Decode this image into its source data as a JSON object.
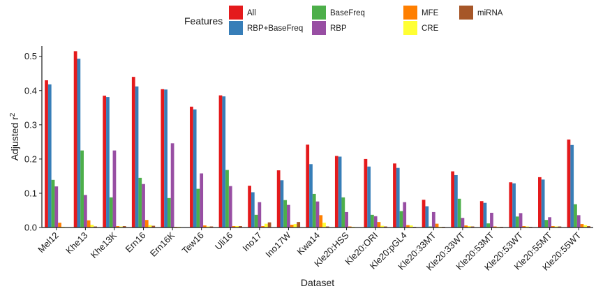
{
  "chart_data": {
    "type": "bar",
    "xlabel": "Dataset",
    "ylabel": "Adjusted r",
    "ylabel_superscript": "2",
    "ylim": [
      0,
      0.53
    ],
    "yticks": [
      "0.0",
      "0.1",
      "0.2",
      "0.3",
      "0.4",
      "0.5"
    ],
    "legend_title": "Features",
    "legend_placement": "top",
    "grid": false,
    "categories": [
      "Mel12",
      "Khe13",
      "Khe13K",
      "Ern16",
      "Ern16K",
      "Tew16",
      "Uli16",
      "Ino17",
      "Ino17W",
      "Kwa14",
      "Kle20:HSS",
      "Kle20:ORI",
      "Kle20:pGL4",
      "Kle20:33MT",
      "Kle20:33WT",
      "Kle20:53MT",
      "Kle20:53WT",
      "Kle20:55MT",
      "Kle20:55WT"
    ],
    "series": [
      {
        "name": "All",
        "color": "#e41a1c",
        "values": [
          0.43,
          0.515,
          0.385,
          0.44,
          0.404,
          0.353,
          0.386,
          0.122,
          0.167,
          0.242,
          0.209,
          0.2,
          0.187,
          0.081,
          0.164,
          0.077,
          0.132,
          0.147,
          0.257
        ]
      },
      {
        "name": "RBP+BaseFreq",
        "color": "#377eb8",
        "values": [
          0.418,
          0.493,
          0.381,
          0.412,
          0.403,
          0.345,
          0.383,
          0.103,
          0.138,
          0.185,
          0.207,
          0.178,
          0.174,
          0.062,
          0.153,
          0.072,
          0.129,
          0.14,
          0.241
        ]
      },
      {
        "name": "BaseFreq",
        "color": "#4daf4a",
        "values": [
          0.139,
          0.225,
          0.088,
          0.145,
          0.086,
          0.113,
          0.168,
          0.037,
          0.08,
          0.098,
          0.088,
          0.037,
          0.048,
          0.003,
          0.084,
          0.012,
          0.032,
          0.022,
          0.068
        ]
      },
      {
        "name": "RBP",
        "color": "#984ea3",
        "values": [
          0.12,
          0.095,
          0.225,
          0.127,
          0.246,
          0.158,
          0.121,
          0.074,
          0.066,
          0.076,
          0.045,
          0.033,
          0.074,
          0.045,
          0.028,
          0.043,
          0.042,
          0.03,
          0.036
        ]
      },
      {
        "name": "MFE",
        "color": "#ff7f00",
        "values": [
          0.014,
          0.021,
          0.004,
          0.022,
          0.002,
          0.006,
          0.004,
          0.004,
          0.008,
          0.036,
          0.003,
          0.016,
          0.007,
          0.011,
          0.006,
          0.003,
          0.004,
          0.004,
          0.01
        ]
      },
      {
        "name": "CRE",
        "color": "#ffff33",
        "values": [
          0.002,
          0.008,
          0.003,
          0.007,
          0.002,
          0.003,
          0.004,
          0.011,
          0.01,
          0.014,
          0.002,
          0.005,
          0.006,
          0.002,
          0.004,
          0.002,
          0.003,
          0.003,
          0.007
        ]
      },
      {
        "name": "miRNA",
        "color": "#a65628",
        "values": [
          0.001,
          0.003,
          0.004,
          0.005,
          0.001,
          0.003,
          0.004,
          0.015,
          0.016,
          0.003,
          0.001,
          0.003,
          0.002,
          0.002,
          0.003,
          0.002,
          0.002,
          0.003,
          0.004
        ]
      }
    ],
    "legend_rows": [
      [
        "All",
        "BaseFreq",
        "MFE",
        "miRNA"
      ],
      [
        "RBP+BaseFreq",
        "RBP",
        "CRE"
      ]
    ]
  }
}
